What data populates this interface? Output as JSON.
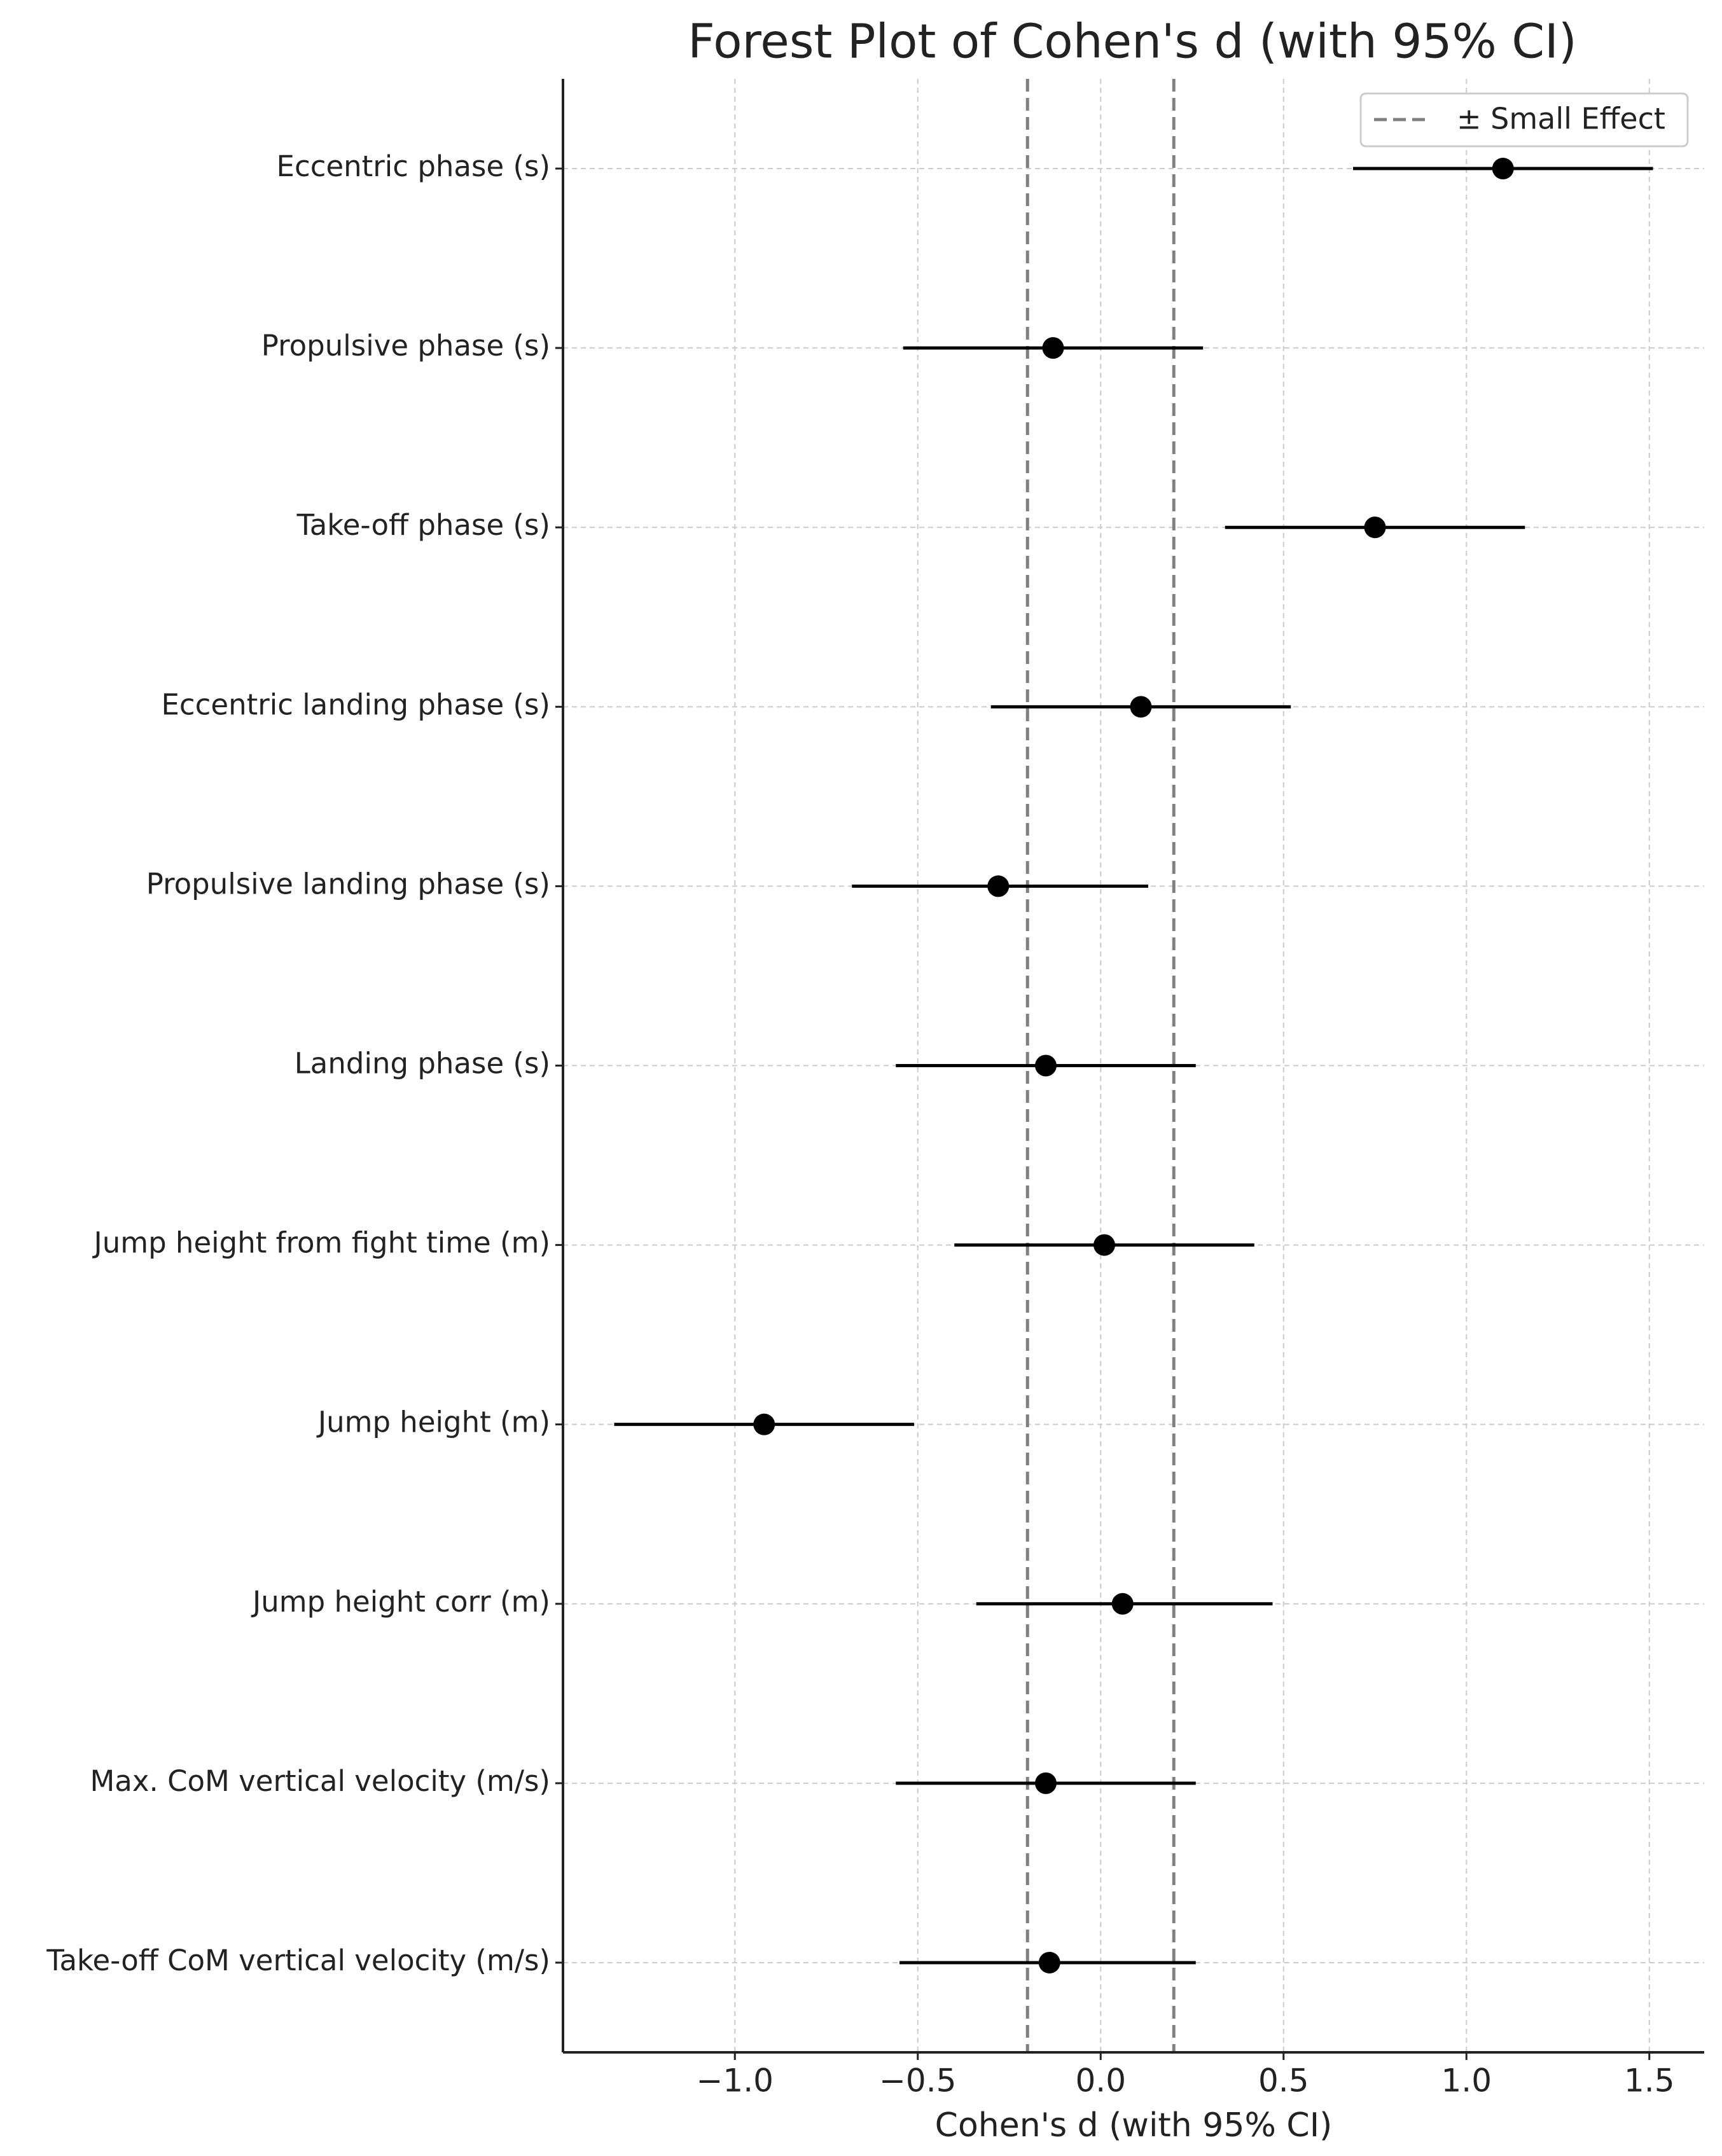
{
  "chart_data": {
    "type": "forest",
    "title": "Forest Plot of Cohen's d (with 95% CI)",
    "x_label": "Cohen's d (with 95% CI)",
    "categories": [
      "Eccentric phase (s)",
      "Propulsive phase (s)",
      "Take-off phase (s)",
      "Eccentric landing phase (s)",
      "Propulsive landing phase (s)",
      "Landing phase (s)",
      "Jump height from fight time (m)",
      "Jump height (m)",
      "Jump height corr (m)",
      "Max. CoM vertical velocity (m/s)",
      "Take-off CoM vertical velocity (m/s)"
    ],
    "values": [
      1.1,
      -0.13,
      0.75,
      0.11,
      -0.28,
      -0.15,
      0.01,
      -0.92,
      0.06,
      -0.15,
      -0.14
    ],
    "ci_lower": [
      0.69,
      -0.54,
      0.34,
      -0.3,
      -0.68,
      -0.56,
      -0.4,
      -1.33,
      -0.34,
      -0.56,
      -0.55
    ],
    "ci_upper": [
      1.51,
      0.28,
      1.16,
      0.52,
      0.13,
      0.26,
      0.42,
      -0.51,
      0.47,
      0.26,
      0.26
    ],
    "color": "#000000",
    "reference_lines": [
      -0.2,
      0.2
    ],
    "reference_color": "#808080",
    "reference_label": "± Small Effect",
    "legend": "upper right",
    "grid": true,
    "xlim": [
      -1.47,
      1.65
    ],
    "xticks": [
      {
        "value": -1.0,
        "label": "−1.0"
      },
      {
        "value": -0.5,
        "label": "−0.5"
      },
      {
        "value": 0.0,
        "label": "0.0"
      },
      0.5,
      {
        "value": 1.0,
        "label": "1.0"
      },
      1.5
    ]
  }
}
